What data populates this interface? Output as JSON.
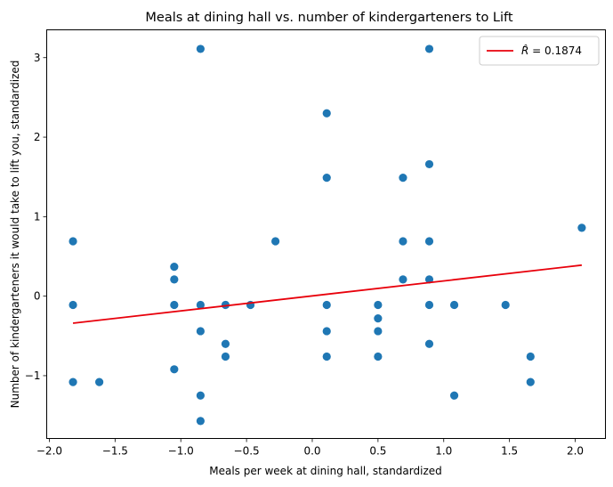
{
  "chart_data": {
    "type": "scatter",
    "title": "Meals at dining hall vs. number of kindergarteners to Lift",
    "xlabel": "Meals per week at dining hall, standardized",
    "ylabel": "Number of kindergarteners it would take to lift you, standardized",
    "xlim": [
      -2.02,
      2.23
    ],
    "ylim": [
      -1.79,
      3.35
    ],
    "xticks": [
      -2.0,
      -1.5,
      -1.0,
      -0.5,
      0.0,
      0.5,
      1.0,
      1.5,
      2.0
    ],
    "xtick_labels": [
      "−2.0",
      "−1.5",
      "−1.0",
      "−0.5",
      "0.0",
      "0.5",
      "1.0",
      "1.5",
      "2.0"
    ],
    "yticks": [
      -1,
      0,
      1,
      2,
      3
    ],
    "ytick_labels": [
      "−1",
      "0",
      "1",
      "2",
      "3"
    ],
    "grid": false,
    "legend_position": "top-right",
    "point_color": "#1f77b4",
    "line_color": "#e8000b",
    "points": [
      {
        "x": -1.82,
        "y": 0.69
      },
      {
        "x": -1.82,
        "y": -0.11
      },
      {
        "x": -1.82,
        "y": -1.08
      },
      {
        "x": -1.62,
        "y": -1.08
      },
      {
        "x": -1.05,
        "y": 0.37
      },
      {
        "x": -1.05,
        "y": 0.21
      },
      {
        "x": -1.05,
        "y": -0.11
      },
      {
        "x": -1.05,
        "y": -0.92
      },
      {
        "x": -0.85,
        "y": 3.11
      },
      {
        "x": -0.85,
        "y": -0.11
      },
      {
        "x": -0.85,
        "y": -0.44
      },
      {
        "x": -0.85,
        "y": -1.25
      },
      {
        "x": -0.85,
        "y": -1.57
      },
      {
        "x": -0.66,
        "y": -0.11
      },
      {
        "x": -0.66,
        "y": -0.6
      },
      {
        "x": -0.66,
        "y": -0.76
      },
      {
        "x": -0.47,
        "y": -0.11
      },
      {
        "x": -0.28,
        "y": 0.69
      },
      {
        "x": 0.11,
        "y": 2.3
      },
      {
        "x": 0.11,
        "y": 1.49
      },
      {
        "x": 0.11,
        "y": -0.11
      },
      {
        "x": 0.11,
        "y": -0.44
      },
      {
        "x": 0.11,
        "y": -0.76
      },
      {
        "x": 0.5,
        "y": -0.11
      },
      {
        "x": 0.5,
        "y": -0.28
      },
      {
        "x": 0.5,
        "y": -0.44
      },
      {
        "x": 0.5,
        "y": -0.76
      },
      {
        "x": 0.69,
        "y": 1.49
      },
      {
        "x": 0.69,
        "y": 0.69
      },
      {
        "x": 0.69,
        "y": 0.21
      },
      {
        "x": 0.89,
        "y": 3.11
      },
      {
        "x": 0.89,
        "y": 1.66
      },
      {
        "x": 0.89,
        "y": 0.69
      },
      {
        "x": 0.89,
        "y": 0.21
      },
      {
        "x": 0.89,
        "y": -0.11
      },
      {
        "x": 0.89,
        "y": -0.6
      },
      {
        "x": 1.08,
        "y": -0.11
      },
      {
        "x": 1.08,
        "y": -1.25
      },
      {
        "x": 1.47,
        "y": -0.11
      },
      {
        "x": 1.66,
        "y": -0.76
      },
      {
        "x": 1.66,
        "y": -1.08
      },
      {
        "x": 2.05,
        "y": 0.86
      }
    ],
    "fit_line": {
      "x": [
        -1.82,
        2.05
      ],
      "y": [
        -0.34,
        0.39
      ]
    },
    "legend": {
      "label_prefix": "R̂ = ",
      "r_value": "0.1874"
    }
  }
}
